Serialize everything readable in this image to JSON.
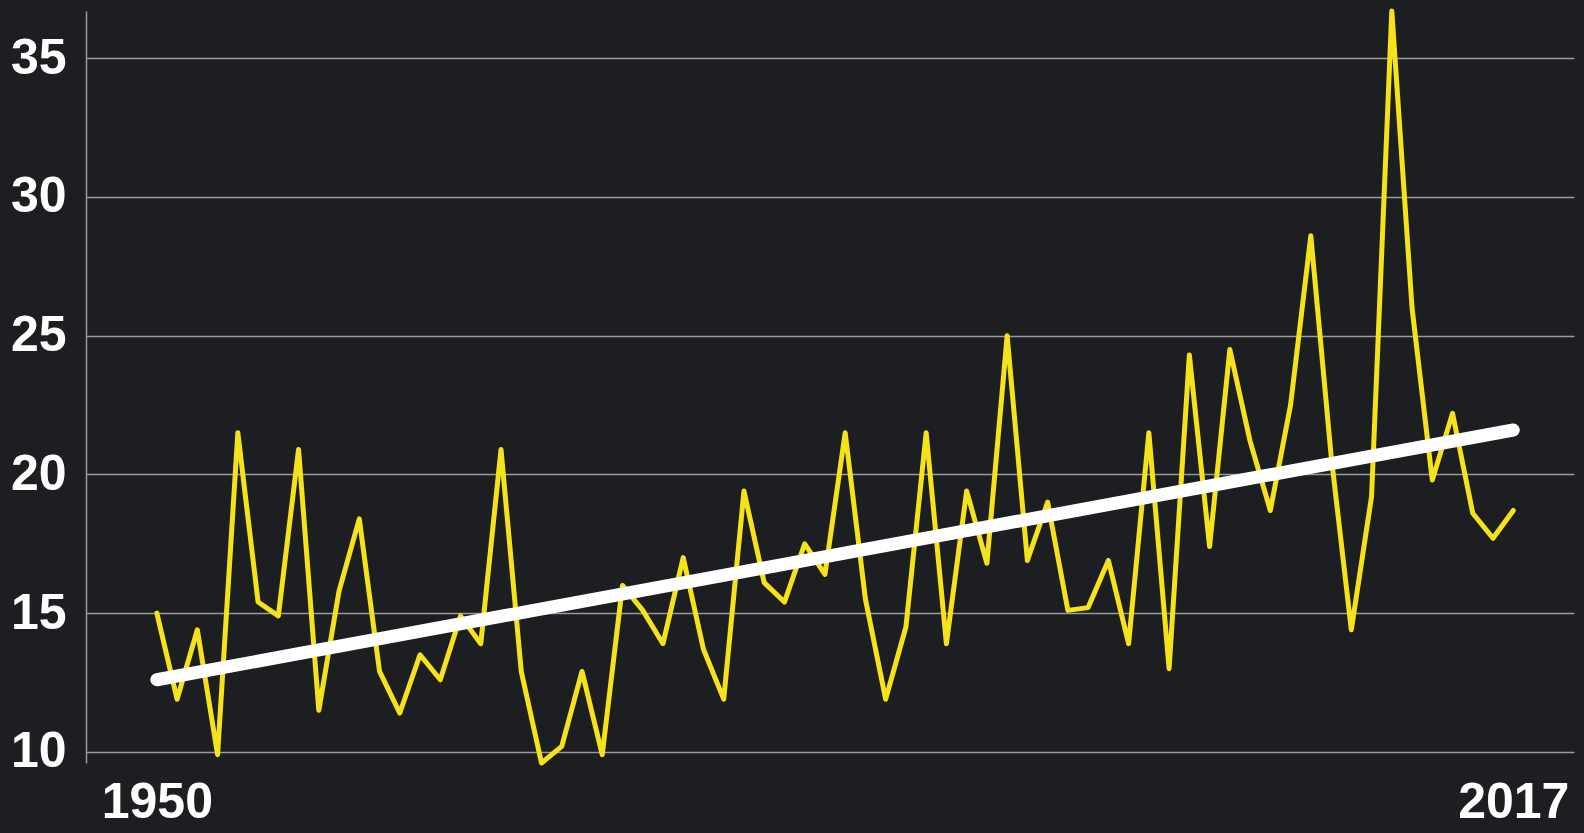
{
  "chart_data": {
    "type": "line",
    "x": [
      1950,
      1951,
      1952,
      1953,
      1954,
      1955,
      1956,
      1957,
      1958,
      1959,
      1960,
      1961,
      1962,
      1963,
      1964,
      1965,
      1966,
      1967,
      1968,
      1969,
      1970,
      1971,
      1972,
      1973,
      1974,
      1975,
      1976,
      1977,
      1978,
      1979,
      1980,
      1981,
      1982,
      1983,
      1984,
      1985,
      1986,
      1987,
      1988,
      1989,
      1990,
      1991,
      1992,
      1993,
      1994,
      1995,
      1996,
      1997,
      1998,
      1999,
      2000,
      2001,
      2002,
      2003,
      2004,
      2005,
      2006,
      2007,
      2008,
      2009,
      2010,
      2011,
      2012,
      2013,
      2014,
      2015,
      2016,
      2017
    ],
    "series": [
      {
        "color": "#f5e21b",
        "values": [
          15.0,
          11.9,
          14.4,
          9.9,
          21.5,
          15.4,
          14.9,
          20.9,
          11.5,
          15.8,
          18.4,
          12.9,
          11.4,
          13.5,
          12.6,
          14.9,
          13.9,
          20.9,
          12.9,
          9.6,
          10.2,
          12.9,
          9.9,
          16.0,
          15.1,
          13.9,
          17.0,
          13.7,
          11.9,
          19.4,
          16.1,
          15.4,
          17.5,
          16.4,
          21.5,
          15.5,
          11.9,
          14.5,
          21.5,
          13.9,
          19.4,
          16.8,
          25.0,
          16.9,
          19.0,
          15.1,
          15.2,
          16.9,
          13.9,
          21.5,
          13.0,
          24.3,
          17.4,
          24.5,
          21.2,
          18.7,
          22.5,
          28.6,
          20.7,
          14.4,
          19.2,
          36.7,
          26.0,
          19.8,
          22.2,
          18.6,
          17.7,
          18.7
        ]
      },
      {
        "type": "line",
        "color": "#ffffff",
        "x": [
          1950,
          2017
        ],
        "values": [
          12.6,
          21.6
        ]
      }
    ],
    "xlim": [
      1946.5,
      2020
    ],
    "xticks": [
      1950,
      2017
    ],
    "ylim": [
      9.6,
      36.7
    ],
    "yticks": [
      10,
      15,
      20,
      25,
      30,
      35
    ],
    "grid": "y"
  }
}
